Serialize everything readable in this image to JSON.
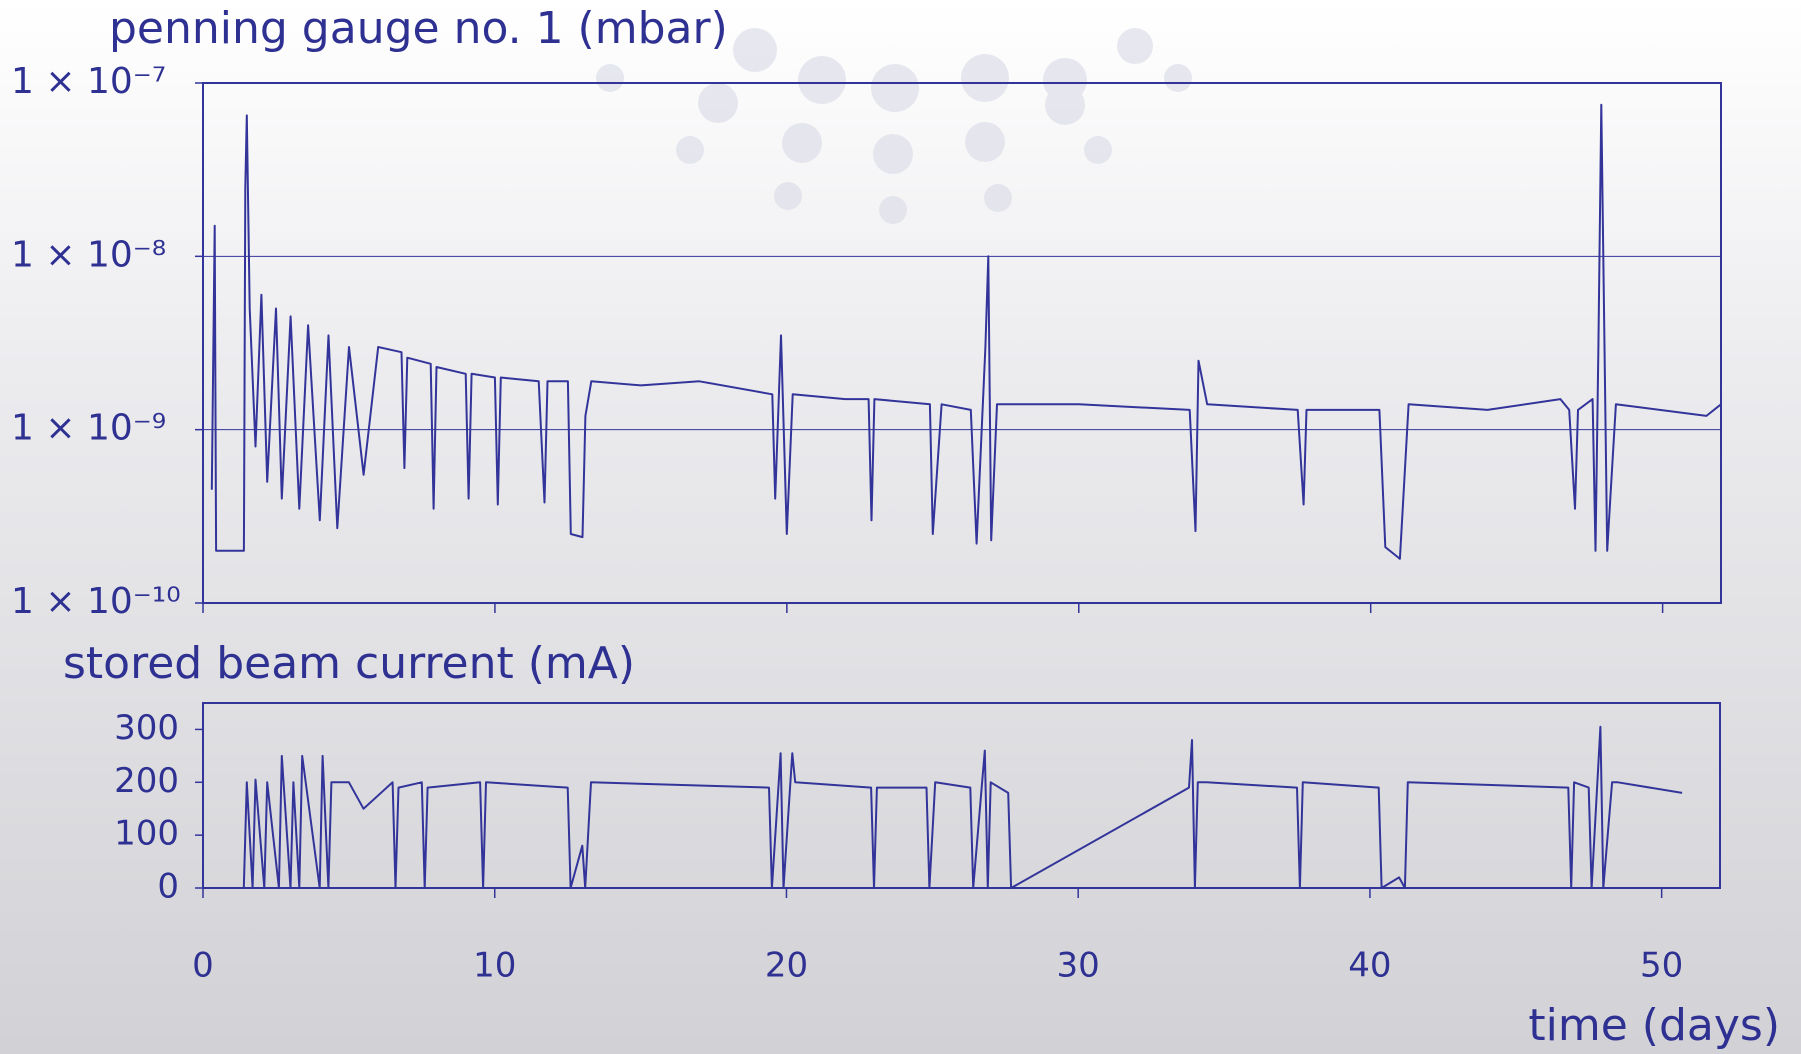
{
  "chart_data": [
    {
      "type": "line",
      "title": "penning gauge no. 1 (mbar)",
      "log_scale": true,
      "grid": true,
      "show_xtick_labels": false,
      "xlim": [
        0,
        52
      ],
      "xticks": [
        0,
        10,
        20,
        30,
        40,
        50
      ],
      "ylim": [
        1e-10,
        1e-07
      ],
      "yticks": [
        {
          "value": 1e-10,
          "label": "1 × 10⁻¹⁰"
        },
        {
          "value": 1e-09,
          "label": "1 × 10⁻⁹"
        },
        {
          "value": 1e-08,
          "label": "1 × 10⁻⁸"
        },
        {
          "value": 1e-07,
          "label": "1 × 10⁻⁷"
        }
      ],
      "x": [
        0.3,
        0.4,
        0.45,
        1.4,
        1.45,
        1.5,
        1.6,
        1.8,
        2.0,
        2.2,
        2.5,
        2.7,
        3.0,
        3.3,
        3.6,
        4.0,
        4.3,
        4.6,
        5.0,
        5.5,
        6.0,
        6.8,
        6.9,
        7.0,
        7.8,
        7.9,
        8.0,
        9.0,
        9.1,
        9.2,
        10.0,
        10.1,
        10.2,
        11.5,
        11.7,
        11.8,
        12.5,
        12.6,
        13.0,
        13.1,
        13.3,
        15.0,
        17.0,
        19.5,
        19.6,
        19.8,
        20.0,
        20.2,
        22.0,
        22.8,
        22.9,
        23.0,
        24.9,
        25.0,
        25.3,
        26.3,
        26.5,
        26.8,
        26.9,
        27.0,
        27.2,
        30.0,
        33.8,
        34.0,
        34.1,
        34.4,
        37.5,
        37.7,
        37.8,
        40.3,
        40.5,
        41.0,
        41.3,
        44.0,
        46.5,
        46.8,
        47.0,
        47.1,
        47.6,
        47.7,
        47.8,
        47.9,
        48.1,
        48.4,
        51.5,
        52.0
      ],
      "series": [
        {
          "color": "#33349a",
          "values": [
            4.5e-10,
            1.5e-08,
            2e-10,
            2e-10,
            2.5e-08,
            6.5e-08,
            5e-09,
            8e-10,
            6e-09,
            5e-10,
            5e-09,
            4e-10,
            4.5e-09,
            3.5e-10,
            4e-09,
            3e-10,
            3.5e-09,
            2.7e-10,
            3e-09,
            5.5e-10,
            3e-09,
            2.8e-09,
            6e-10,
            2.6e-09,
            2.4e-09,
            3.5e-10,
            2.3e-09,
            2.1e-09,
            4e-10,
            2.1e-09,
            2e-09,
            3.7e-10,
            2e-09,
            1.9e-09,
            3.8e-10,
            1.9e-09,
            1.9e-09,
            2.5e-10,
            2.4e-10,
            1.2e-09,
            1.9e-09,
            1.8e-09,
            1.9e-09,
            1.6e-09,
            4e-10,
            3.5e-09,
            2.5e-10,
            1.6e-09,
            1.5e-09,
            1.5e-09,
            3e-10,
            1.5e-09,
            1.4e-09,
            2.5e-10,
            1.4e-09,
            1.3e-09,
            2.2e-10,
            3e-09,
            1e-08,
            2.3e-10,
            1.4e-09,
            1.4e-09,
            1.3e-09,
            2.6e-10,
            2.5e-09,
            1.4e-09,
            1.3e-09,
            3.7e-10,
            1.3e-09,
            1.3e-09,
            2.1e-10,
            1.8e-10,
            1.4e-09,
            1.3e-09,
            1.5e-09,
            1.3e-09,
            3.5e-10,
            1.3e-09,
            1.5e-09,
            2e-10,
            3e-09,
            7.5e-08,
            2e-10,
            1.4e-09,
            1.2e-09,
            1.4e-09
          ]
        }
      ]
    },
    {
      "type": "line",
      "title": "stored beam current (mA)",
      "xlabel": "time (days)",
      "log_scale": false,
      "grid": false,
      "show_xtick_labels": true,
      "xlim": [
        0,
        52
      ],
      "xticks": [
        0,
        10,
        20,
        30,
        40,
        50
      ],
      "ylim": [
        0,
        350
      ],
      "yticks": [
        0,
        100,
        200,
        300
      ],
      "x": [
        0.5,
        1.4,
        1.5,
        1.7,
        1.8,
        2.1,
        2.2,
        2.6,
        2.7,
        3.0,
        3.1,
        3.3,
        3.4,
        4.0,
        4.1,
        4.3,
        4.4,
        5.0,
        5.5,
        6.5,
        6.6,
        6.7,
        7.5,
        7.6,
        7.7,
        9.5,
        9.6,
        9.7,
        12.5,
        12.6,
        13.0,
        13.1,
        13.3,
        19.4,
        19.5,
        19.8,
        19.9,
        20.2,
        20.3,
        22.9,
        23.0,
        23.1,
        24.8,
        24.9,
        25.1,
        26.3,
        26.4,
        26.8,
        26.9,
        27.0,
        27.6,
        27.7,
        33.8,
        33.9,
        34.0,
        34.1,
        34.4,
        37.5,
        37.6,
        37.7,
        40.3,
        40.4,
        41.0,
        41.2,
        41.3,
        46.8,
        46.9,
        47.0,
        47.5,
        47.6,
        47.9,
        48.0,
        48.3,
        48.5,
        50.7
      ],
      "series": [
        {
          "color": "#33349a",
          "values": [
            0,
            0,
            200,
            0,
            205,
            0,
            200,
            0,
            250,
            0,
            200,
            0,
            250,
            0,
            250,
            0,
            200,
            200,
            150,
            200,
            0,
            190,
            200,
            0,
            190,
            200,
            0,
            200,
            190,
            0,
            80,
            0,
            200,
            190,
            0,
            255,
            0,
            255,
            200,
            190,
            0,
            190,
            190,
            0,
            200,
            190,
            0,
            260,
            0,
            200,
            180,
            0,
            190,
            280,
            0,
            200,
            200,
            190,
            0,
            200,
            190,
            0,
            20,
            0,
            200,
            190,
            0,
            200,
            190,
            0,
            305,
            0,
            200,
            200,
            180
          ]
        }
      ]
    }
  ]
}
